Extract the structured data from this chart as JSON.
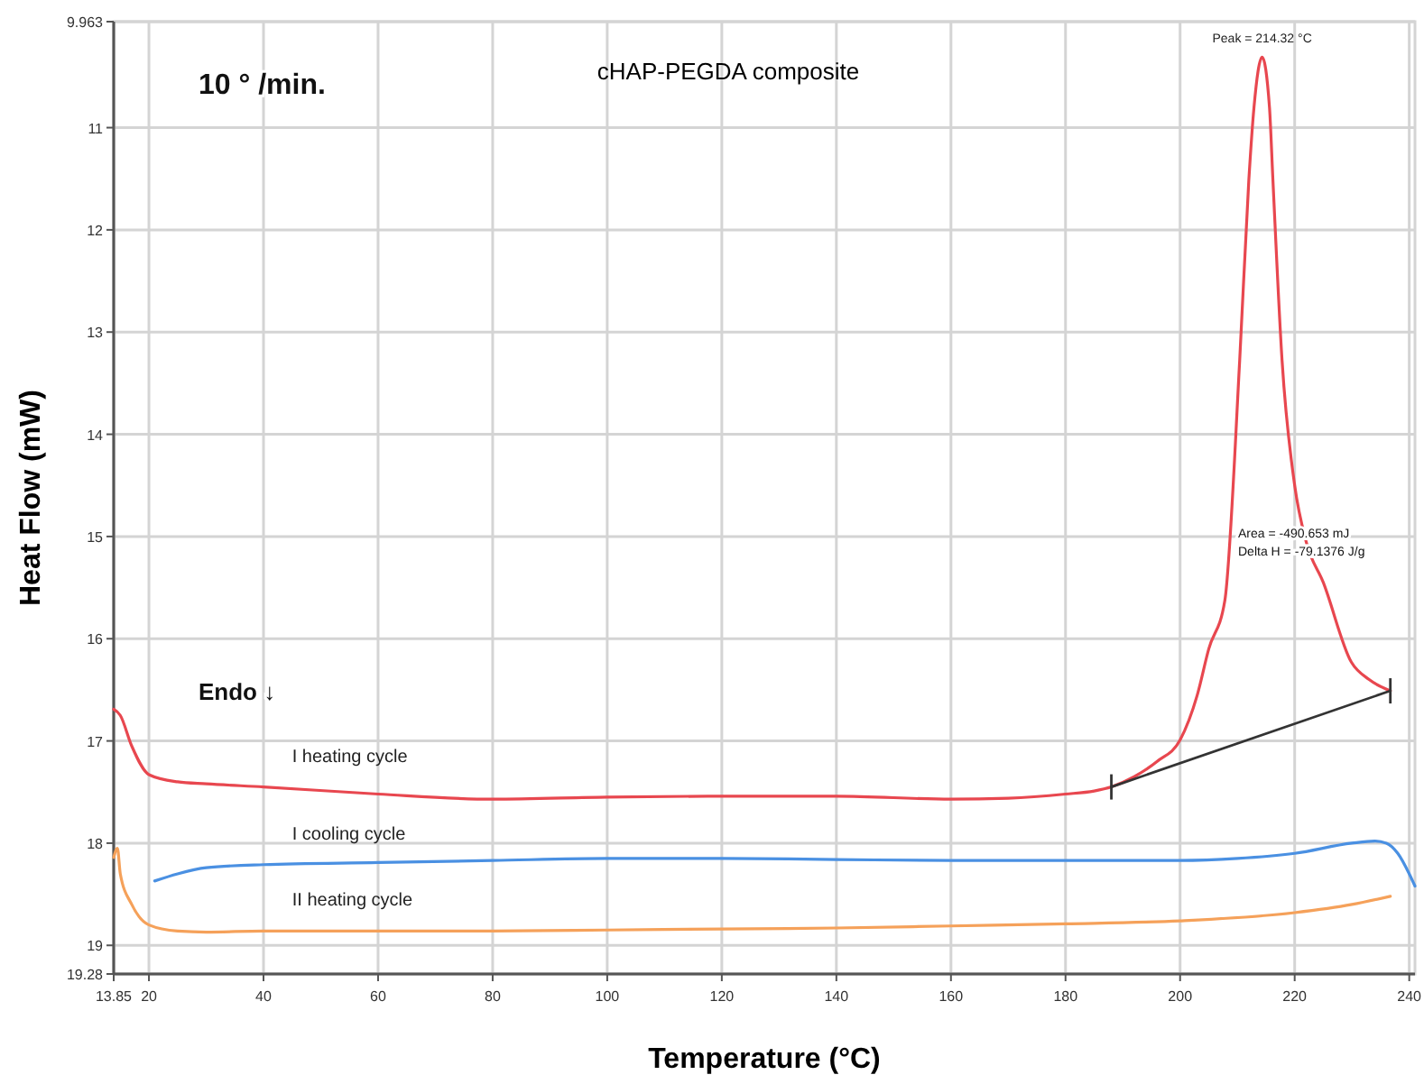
{
  "chart_data": {
    "type": "line",
    "title": "cHAP-PEGDA composite",
    "xlabel": "Temperature (°C)",
    "ylabel": "Heat Flow (mW)",
    "xlim": [
      13.85,
      241
    ],
    "xticks": [
      13.85,
      20,
      40,
      60,
      80,
      100,
      120,
      140,
      160,
      180,
      200,
      220,
      240
    ],
    "ylim": [
      19.28,
      9.963
    ],
    "yticks": [
      9.963,
      11,
      12,
      13,
      14,
      15,
      16,
      17,
      18,
      19,
      19.28
    ],
    "grid": true,
    "marker": "none",
    "line_style": "solid",
    "series": [
      {
        "name": "I heating cycle",
        "color": "#e8474f",
        "x": [
          13.85,
          15,
          17,
          20,
          25,
          30,
          40,
          60,
          80,
          100,
          120,
          140,
          160,
          170,
          180,
          185,
          188,
          192,
          196,
          200,
          203,
          205,
          207.8,
          210.4,
          212,
          212.9,
          214.32,
          215.6,
          216.2,
          217.8,
          220,
          222,
          225,
          229.9,
          233,
          236.7
        ],
        "values": [
          16.69,
          16.75,
          17.05,
          17.33,
          17.4,
          17.42,
          17.45,
          17.52,
          17.57,
          17.55,
          17.54,
          17.54,
          17.57,
          17.56,
          17.52,
          17.49,
          17.45,
          17.35,
          17.2,
          16.99,
          16.55,
          16.1,
          15.63,
          13.28,
          11.51,
          10.8,
          10.31,
          10.8,
          11.51,
          13.28,
          14.5,
          15.05,
          15.45,
          16.23,
          16.4,
          16.51
        ]
      },
      {
        "name": "I cooling cycle",
        "color": "#4a90e2",
        "x": [
          21,
          25,
          30,
          40,
          60,
          80,
          100,
          120,
          140,
          160,
          180,
          200,
          210,
          220,
          230,
          234,
          236,
          238,
          240,
          241
        ],
        "values": [
          18.37,
          18.3,
          18.24,
          18.21,
          18.19,
          18.17,
          18.15,
          18.15,
          18.16,
          18.17,
          18.17,
          18.17,
          18.15,
          18.1,
          18.0,
          17.98,
          18.0,
          18.1,
          18.3,
          18.42
        ]
      },
      {
        "name": "II heating cycle",
        "color": "#f5a15a",
        "x": [
          13.85,
          14.5,
          15,
          17,
          20,
          25,
          30,
          40,
          60,
          80,
          100,
          120,
          140,
          160,
          180,
          200,
          220,
          230,
          236.7
        ],
        "values": [
          18.14,
          18.05,
          18.3,
          18.6,
          18.8,
          18.86,
          18.87,
          18.86,
          18.86,
          18.86,
          18.85,
          18.84,
          18.83,
          18.81,
          18.79,
          18.76,
          18.68,
          18.6,
          18.52
        ]
      },
      {
        "color": "#333333",
        "x": [
          188,
          236.7
        ],
        "values": [
          17.45,
          16.51
        ]
      }
    ],
    "annotations": [
      "10 ° /min.",
      "Endo ↓",
      {
        "text": "Peak = 214.32 °C",
        "x": 214.32,
        "y": 10.31
      },
      "Area = -490.653 mJ",
      "Delta H = -79.1376 J/g"
    ]
  }
}
